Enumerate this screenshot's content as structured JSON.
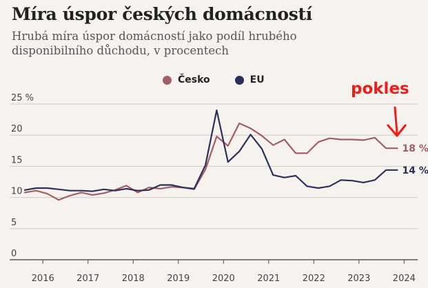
{
  "title": "Míra úspor českých domácností",
  "subtitle": "Hrubá míra úspor domácností jako podíl hrubého disponibilního důchodu, v procentech",
  "callout": "pokles",
  "legend": [
    {
      "name": "Česko",
      "color": "#a35d66"
    },
    {
      "name": "EU",
      "color": "#2b2f5c"
    }
  ],
  "chart_data": {
    "type": "line",
    "title": "Míra úspor českých domácností",
    "xlabel": "",
    "ylabel": "",
    "ylim": [
      0,
      25
    ],
    "xlim": [
      2015.6,
      2024.3
    ],
    "y_ticks": [
      0,
      5,
      10,
      15,
      20,
      25
    ],
    "y_tick_labels": [
      "0",
      "5",
      "10",
      "15",
      "20",
      "25 %"
    ],
    "x_ticks": [
      2016,
      2017,
      2018,
      2019,
      2020,
      2021,
      2022,
      2023,
      2024
    ],
    "x_tick_labels": [
      "2016",
      "2017",
      "2018",
      "2019",
      "2020",
      "2021",
      "2022",
      "2023",
      "2024"
    ],
    "grid": "horizontal",
    "series": [
      {
        "name": "Česko",
        "color": "#a35d66",
        "end_label": "18 %",
        "x": [
          2015.6,
          2015.85,
          2016.1,
          2016.35,
          2016.6,
          2016.85,
          2017.1,
          2017.35,
          2017.6,
          2017.85,
          2018.1,
          2018.35,
          2018.6,
          2018.85,
          2019.1,
          2019.35,
          2019.6,
          2019.85,
          2020.1,
          2020.35,
          2020.6,
          2020.85,
          2021.1,
          2021.35,
          2021.6,
          2021.85,
          2022.1,
          2022.35,
          2022.6,
          2022.85,
          2023.1,
          2023.35,
          2023.6,
          2023.85
        ],
        "values": [
          10.8,
          11.1,
          10.6,
          9.6,
          10.3,
          10.8,
          10.4,
          10.7,
          11.2,
          11.9,
          10.8,
          11.6,
          11.4,
          11.7,
          11.6,
          11.3,
          14.5,
          19.8,
          18.3,
          21.9,
          21.1,
          19.9,
          18.4,
          19.3,
          17.1,
          17.1,
          18.9,
          19.5,
          19.3,
          19.3,
          19.2,
          19.6,
          17.9,
          17.9
        ]
      },
      {
        "name": "EU",
        "color": "#2b2f5c",
        "end_label": "14 %",
        "x": [
          2015.6,
          2015.85,
          2016.1,
          2016.35,
          2016.6,
          2016.85,
          2017.1,
          2017.35,
          2017.6,
          2017.85,
          2018.1,
          2018.35,
          2018.6,
          2018.85,
          2019.1,
          2019.35,
          2019.6,
          2019.85,
          2020.1,
          2020.35,
          2020.6,
          2020.85,
          2021.1,
          2021.35,
          2021.6,
          2021.85,
          2022.1,
          2022.35,
          2022.6,
          2022.85,
          2023.1,
          2023.35,
          2023.6,
          2023.85
        ],
        "values": [
          11.2,
          11.5,
          11.5,
          11.3,
          11.1,
          11.1,
          11.0,
          11.3,
          11.1,
          11.4,
          11.1,
          11.2,
          12.0,
          12.0,
          11.6,
          11.4,
          15.2,
          24.0,
          15.7,
          17.4,
          20.1,
          17.8,
          13.6,
          13.2,
          13.5,
          11.8,
          11.5,
          11.8,
          12.8,
          12.7,
          12.4,
          12.8,
          14.4,
          14.4
        ]
      }
    ]
  }
}
